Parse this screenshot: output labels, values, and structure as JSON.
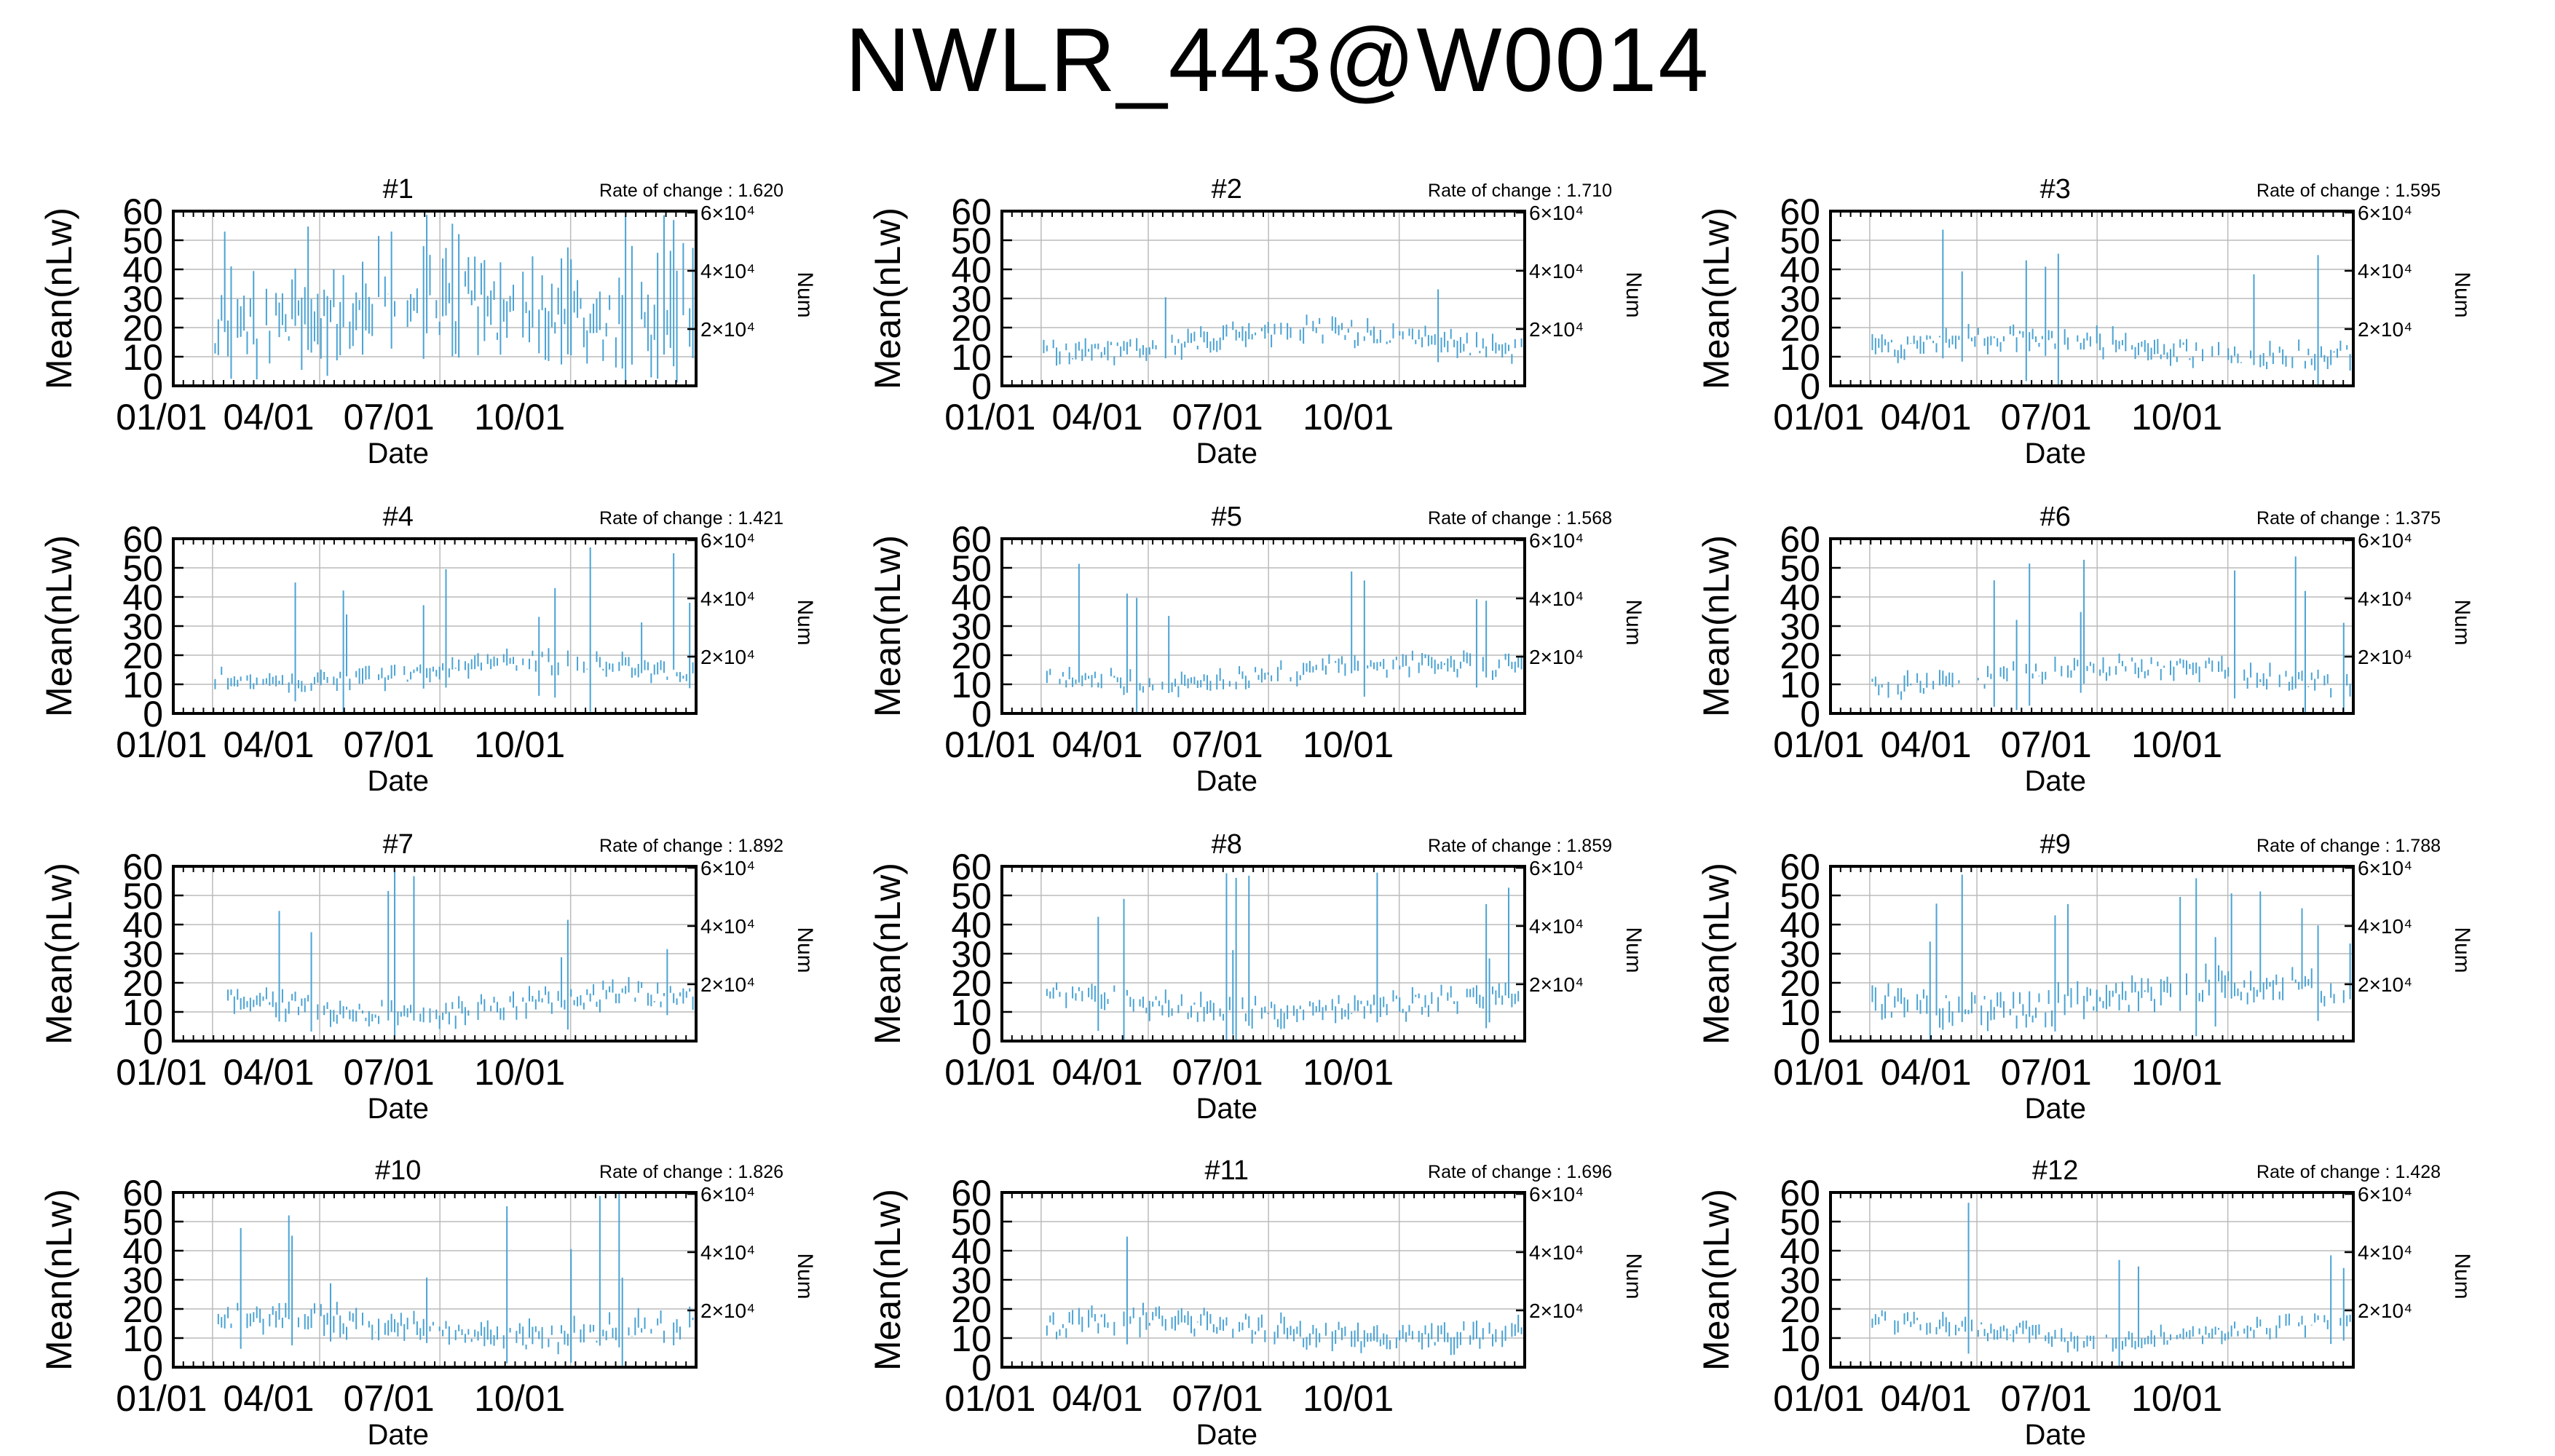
{
  "title": "NWLR_443@W0014",
  "shared": {
    "xlabel": "Date",
    "ylabel": "Mean(nLw)",
    "y2label": "Num",
    "rate_prefix": "Rate of change : ",
    "x_ticks": [
      "01/01",
      "04/01",
      "07/01",
      "10/01"
    ],
    "y_ticks": [
      "0",
      "10",
      "20",
      "30",
      "40",
      "50",
      "60"
    ],
    "y2_ticks": [
      "2×10⁴",
      "4×10⁴",
      "6×10⁴"
    ],
    "line_color": "#4aa3d4",
    "grid_color": "#bbbbbb"
  },
  "chart_data": [
    {
      "type": "bar",
      "title": "#1",
      "rate": "1.620",
      "seed": 11,
      "base": 22,
      "spread": 18,
      "tall": 0.35,
      "ylim": [
        0,
        60
      ],
      "x_range": [
        "01/01",
        "12/31"
      ]
    },
    {
      "type": "bar",
      "title": "#2",
      "rate": "1.710",
      "seed": 23,
      "base": 15,
      "spread": 6,
      "tall": 0.06,
      "ylim": [
        0,
        60
      ],
      "x_range": [
        "01/01",
        "12/31"
      ]
    },
    {
      "type": "bar",
      "title": "#3",
      "rate": "1.595",
      "seed": 37,
      "base": 13,
      "spread": 6,
      "tall": 0.07,
      "ylim": [
        0,
        60
      ],
      "x_range": [
        "01/01",
        "12/31"
      ]
    },
    {
      "type": "bar",
      "title": "#4",
      "rate": "1.421",
      "seed": 41,
      "base": 14,
      "spread": 5,
      "tall": 0.08,
      "ylim": [
        0,
        60
      ],
      "x_range": [
        "01/01",
        "12/31"
      ]
    },
    {
      "type": "bar",
      "title": "#5",
      "rate": "1.568",
      "seed": 53,
      "base": 14,
      "spread": 5,
      "tall": 0.06,
      "ylim": [
        0,
        60
      ],
      "x_range": [
        "01/01",
        "12/31"
      ]
    },
    {
      "type": "bar",
      "title": "#6",
      "rate": "1.375",
      "seed": 67,
      "base": 13,
      "spread": 5,
      "tall": 0.07,
      "ylim": [
        0,
        60
      ],
      "x_range": [
        "01/01",
        "12/31"
      ]
    },
    {
      "type": "bar",
      "title": "#7",
      "rate": "1.892",
      "seed": 71,
      "base": 13,
      "spread": 6,
      "tall": 0.05,
      "ylim": [
        0,
        60
      ],
      "x_range": [
        "01/01",
        "12/31"
      ]
    },
    {
      "type": "bar",
      "title": "#8",
      "rate": "1.859",
      "seed": 83,
      "base": 13,
      "spread": 6,
      "tall": 0.05,
      "ylim": [
        0,
        60
      ],
      "x_range": [
        "01/01",
        "12/31"
      ]
    },
    {
      "type": "bar",
      "title": "#9",
      "rate": "1.788",
      "seed": 97,
      "base": 15,
      "spread": 8,
      "tall": 0.09,
      "ylim": [
        0,
        60
      ],
      "x_range": [
        "01/01",
        "12/31"
      ]
    },
    {
      "type": "bar",
      "title": "#10",
      "rate": "1.826",
      "seed": 101,
      "base": 14,
      "spread": 7,
      "tall": 0.07,
      "ylim": [
        0,
        60
      ],
      "x_range": [
        "01/01",
        "12/31"
      ]
    },
    {
      "type": "bar",
      "title": "#11",
      "rate": "1.696",
      "seed": 113,
      "base": 13,
      "spread": 6,
      "tall": 0.05,
      "ylim": [
        0,
        60
      ],
      "x_range": [
        "01/01",
        "12/31"
      ]
    },
    {
      "type": "bar",
      "title": "#12",
      "rate": "1.428",
      "seed": 127,
      "base": 13,
      "spread": 5,
      "tall": 0.04,
      "ylim": [
        0,
        60
      ],
      "x_range": [
        "01/01",
        "12/31"
      ]
    }
  ]
}
